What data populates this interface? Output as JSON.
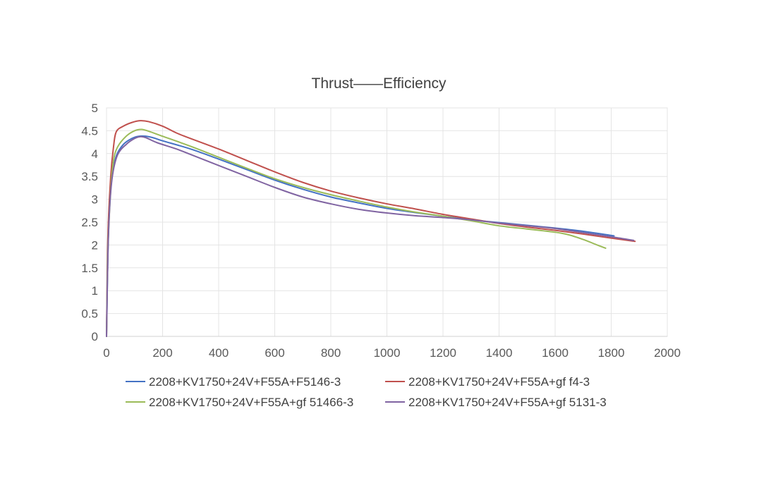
{
  "chart_data": {
    "type": "line",
    "title": "Thrust——Efficiency",
    "xlabel": "",
    "ylabel": "",
    "xlim": [
      0,
      2000
    ],
    "ylim": [
      0,
      5
    ],
    "x_ticks": [
      "0",
      "200",
      "400",
      "600",
      "800",
      "1000",
      "1200",
      "1400",
      "1600",
      "1800",
      "2000"
    ],
    "y_ticks": [
      "0",
      "0.5",
      "1",
      "1.5",
      "2",
      "2.5",
      "3",
      "3.5",
      "4",
      "4.5",
      "5"
    ],
    "grid": true,
    "legend_position": "bottom",
    "series": [
      {
        "name": "2208+KV1750+24V+F55A+F5146-3",
        "color": "#4472c4",
        "points": [
          [
            0,
            0
          ],
          [
            5,
            1.8
          ],
          [
            10,
            2.8
          ],
          [
            20,
            3.5
          ],
          [
            35,
            3.95
          ],
          [
            60,
            4.2
          ],
          [
            90,
            4.33
          ],
          [
            115,
            4.38
          ],
          [
            140,
            4.38
          ],
          [
            170,
            4.34
          ],
          [
            200,
            4.28
          ],
          [
            300,
            4.1
          ],
          [
            400,
            3.88
          ],
          [
            500,
            3.65
          ],
          [
            600,
            3.42
          ],
          [
            700,
            3.22
          ],
          [
            800,
            3.05
          ],
          [
            900,
            2.92
          ],
          [
            1000,
            2.8
          ],
          [
            1100,
            2.71
          ],
          [
            1200,
            2.63
          ],
          [
            1300,
            2.55
          ],
          [
            1400,
            2.49
          ],
          [
            1500,
            2.43
          ],
          [
            1600,
            2.37
          ],
          [
            1700,
            2.3
          ],
          [
            1810,
            2.2
          ]
        ]
      },
      {
        "name": "2208+KV1750+24V+F55A+gf f4-3",
        "color": "#c0504d",
        "points": [
          [
            0,
            0
          ],
          [
            5,
            2.2
          ],
          [
            15,
            3.5
          ],
          [
            25,
            4.15
          ],
          [
            35,
            4.48
          ],
          [
            60,
            4.6
          ],
          [
            90,
            4.68
          ],
          [
            120,
            4.72
          ],
          [
            150,
            4.7
          ],
          [
            200,
            4.6
          ],
          [
            250,
            4.45
          ],
          [
            300,
            4.33
          ],
          [
            400,
            4.1
          ],
          [
            500,
            3.85
          ],
          [
            600,
            3.6
          ],
          [
            700,
            3.37
          ],
          [
            800,
            3.18
          ],
          [
            900,
            3.03
          ],
          [
            1000,
            2.9
          ],
          [
            1100,
            2.79
          ],
          [
            1200,
            2.67
          ],
          [
            1300,
            2.57
          ],
          [
            1400,
            2.47
          ],
          [
            1500,
            2.39
          ],
          [
            1600,
            2.32
          ],
          [
            1700,
            2.24
          ],
          [
            1800,
            2.15
          ],
          [
            1885,
            2.08
          ]
        ]
      },
      {
        "name": "2208+KV1750+24V+F55A+gf 51466-3",
        "color": "#9bbb59",
        "points": [
          [
            0,
            0
          ],
          [
            5,
            1.9
          ],
          [
            15,
            3.2
          ],
          [
            25,
            3.85
          ],
          [
            40,
            4.15
          ],
          [
            70,
            4.38
          ],
          [
            100,
            4.5
          ],
          [
            125,
            4.53
          ],
          [
            150,
            4.49
          ],
          [
            200,
            4.38
          ],
          [
            300,
            4.16
          ],
          [
            400,
            3.92
          ],
          [
            500,
            3.68
          ],
          [
            600,
            3.45
          ],
          [
            700,
            3.26
          ],
          [
            800,
            3.1
          ],
          [
            900,
            2.96
          ],
          [
            1000,
            2.83
          ],
          [
            1100,
            2.72
          ],
          [
            1200,
            2.63
          ],
          [
            1300,
            2.53
          ],
          [
            1400,
            2.42
          ],
          [
            1500,
            2.35
          ],
          [
            1600,
            2.28
          ],
          [
            1650,
            2.22
          ],
          [
            1700,
            2.12
          ],
          [
            1750,
            2.0
          ],
          [
            1780,
            1.93
          ]
        ]
      },
      {
        "name": "2208+KV1750+24V+F55A+gf 5131-3",
        "color": "#8064a2",
        "points": [
          [
            0,
            0
          ],
          [
            5,
            1.8
          ],
          [
            12,
            2.9
          ],
          [
            22,
            3.55
          ],
          [
            40,
            3.98
          ],
          [
            70,
            4.2
          ],
          [
            100,
            4.33
          ],
          [
            120,
            4.37
          ],
          [
            140,
            4.35
          ],
          [
            180,
            4.24
          ],
          [
            250,
            4.1
          ],
          [
            300,
            3.98
          ],
          [
            400,
            3.74
          ],
          [
            500,
            3.5
          ],
          [
            600,
            3.26
          ],
          [
            700,
            3.05
          ],
          [
            800,
            2.9
          ],
          [
            900,
            2.78
          ],
          [
            1000,
            2.7
          ],
          [
            1100,
            2.64
          ],
          [
            1200,
            2.6
          ],
          [
            1300,
            2.55
          ],
          [
            1400,
            2.48
          ],
          [
            1500,
            2.42
          ],
          [
            1600,
            2.36
          ],
          [
            1700,
            2.27
          ],
          [
            1800,
            2.18
          ],
          [
            1880,
            2.1
          ]
        ]
      }
    ]
  }
}
